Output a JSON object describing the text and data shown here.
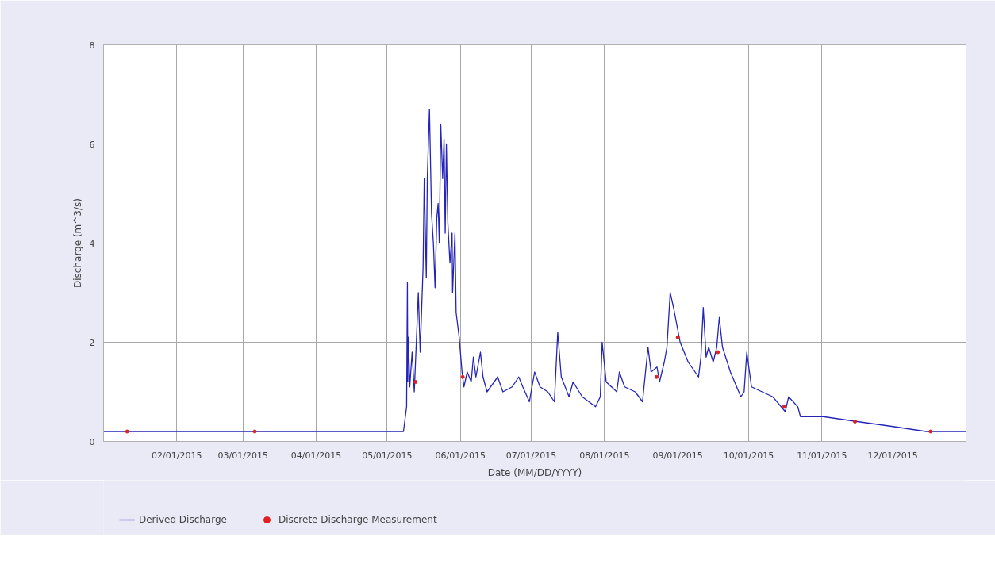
{
  "chart_data": {
    "type": "line",
    "xlabel": "Date (MM/DD/YYYY)",
    "ylabel": "Discharge (m^3/s)",
    "xlim": [
      "2015-01-01",
      "2016-01-01"
    ],
    "xticks": [
      {
        "value": "2015-01-01",
        "label": null
      },
      {
        "value": "2015-02-01",
        "label": "02/01/2015"
      },
      {
        "value": "2015-03-01",
        "label": "03/01/2015"
      },
      {
        "value": "2015-04-01",
        "label": "04/01/2015"
      },
      {
        "value": "2015-05-01",
        "label": "05/01/2015"
      },
      {
        "value": "2015-06-01",
        "label": "06/01/2015"
      },
      {
        "value": "2015-07-01",
        "label": "07/01/2015"
      },
      {
        "value": "2015-08-01",
        "label": "08/01/2015"
      },
      {
        "value": "2015-09-01",
        "label": "09/01/2015"
      },
      {
        "value": "2015-10-01",
        "label": "10/01/2015"
      },
      {
        "value": "2015-11-01",
        "label": "11/01/2015"
      },
      {
        "value": "2015-12-01",
        "label": "12/01/2015"
      },
      {
        "value": "2016-01-01",
        "label": null
      }
    ],
    "ylim": [
      0,
      8
    ],
    "yticks": [
      0,
      2,
      4,
      6,
      8
    ],
    "grid": true,
    "legend": "bottom left",
    "series": [
      {
        "name": "Derived Discharge",
        "color": "#2424b8",
        "x": [
          "2015-01-01T00:00",
          "2015-05-07T22:00",
          "2015-05-09T06:00",
          "2015-05-09T14:00",
          "2015-05-09T18:00",
          "2015-05-10T00:00",
          "2015-05-10T14:00",
          "2015-05-11T14:00",
          "2015-05-12T12:00",
          "2015-05-14T05:00",
          "2015-05-15T00:00",
          "2015-05-16T05:00",
          "2015-05-16T17:00",
          "2015-05-17T14:00",
          "2015-05-18T00:00",
          "2015-05-18T22:00",
          "2015-05-19T19:00",
          "2015-05-20T14:00",
          "2015-05-21T07:00",
          "2015-05-22T00:00",
          "2015-05-22T14:00",
          "2015-05-23T02:00",
          "2015-05-23T17:00",
          "2015-05-24T12:00",
          "2015-05-25T02:00",
          "2015-05-25T14:00",
          "2015-05-26T02:00",
          "2015-05-26T17:00",
          "2015-05-27T14:00",
          "2015-05-28T12:00",
          "2015-05-28T17:00",
          "2015-05-29T17:00",
          "2015-05-30T05:00",
          "2015-05-31T12:00",
          "2015-06-01T17:00",
          "2015-06-02T12:00",
          "2015-06-03T22:00",
          "2015-06-05T14:00",
          "2015-06-06T12:00",
          "2015-06-07T14:00",
          "2015-06-09T12:00",
          "2015-06-10T14:00",
          "2015-06-12T07:00",
          "2015-06-16T19:00",
          "2015-06-19T00:00",
          "2015-06-22T22:00",
          "2015-06-25T17:00",
          "2015-06-27T10:00",
          "2015-06-30T05:00",
          "2015-07-02T10:00",
          "2015-07-04T17:00",
          "2015-07-08T00:00",
          "2015-07-10T19:00",
          "2015-07-12T05:00",
          "2015-07-13T17:00",
          "2015-07-17T00:00",
          "2015-07-18T17:00",
          "2015-07-22T14:00",
          "2015-07-28T05:00",
          "2015-07-30T05:00",
          "2015-07-31T00:00",
          "2015-08-01T17:00",
          "2015-08-06T05:00",
          "2015-08-07T07:00",
          "2015-08-09T12:00",
          "2015-08-14T00:00",
          "2015-08-17T02:00",
          "2015-08-19T10:00",
          "2015-08-20T17:00",
          "2015-08-23T05:00",
          "2015-08-24T07:00",
          "2015-08-26T07:00",
          "2015-08-27T10:00",
          "2015-08-28T19:00",
          "2015-08-30T05:00",
          "2015-09-02T00:00",
          "2015-09-05T10:00",
          "2015-09-09T19:00",
          "2015-09-10T19:00",
          "2015-09-11T19:00",
          "2015-09-13T00:00",
          "2015-09-14T02:00",
          "2015-09-16T00:00",
          "2015-09-17T12:00",
          "2015-09-18T14:00",
          "2015-09-19T22:00",
          "2015-09-23T07:00",
          "2015-09-27T17:00",
          "2015-09-29T02:00",
          "2015-09-30T05:00",
          "2015-10-02T05:00",
          "2015-10-06T17:00",
          "2015-10-11T05:00",
          "2015-10-16T12:00",
          "2015-10-17T22:00",
          "2015-10-21T19:00",
          "2015-10-22T22:00",
          "2015-11-01T12:00",
          "2015-11-16T00:00",
          "2015-12-01T02:00",
          "2015-12-15T02:00",
          "2016-01-01T00:00"
        ],
        "values": [
          0.2,
          0.2,
          0.7,
          3.2,
          1.2,
          2.1,
          1.1,
          1.8,
          1.0,
          3.0,
          1.8,
          3.5,
          5.3,
          3.3,
          5.3,
          6.7,
          4.6,
          4.0,
          3.1,
          4.5,
          4.8,
          4.0,
          6.4,
          5.3,
          6.1,
          4.2,
          6.0,
          4.4,
          3.6,
          4.2,
          3.0,
          4.2,
          2.6,
          2.1,
          1.4,
          1.1,
          1.4,
          1.2,
          1.7,
          1.3,
          1.8,
          1.3,
          1.0,
          1.3,
          1.0,
          1.1,
          1.3,
          1.1,
          0.8,
          1.4,
          1.1,
          1.0,
          0.8,
          2.2,
          1.3,
          0.9,
          1.2,
          0.9,
          0.7,
          0.9,
          2.0,
          1.2,
          1.0,
          1.4,
          1.1,
          1.0,
          0.8,
          1.9,
          1.4,
          1.5,
          1.2,
          1.6,
          1.9,
          3.0,
          2.7,
          2.0,
          1.6,
          1.3,
          1.7,
          2.7,
          1.7,
          1.9,
          1.6,
          1.9,
          2.5,
          1.9,
          1.4,
          0.9,
          1.0,
          1.8,
          1.1,
          1.0,
          0.9,
          0.6,
          0.9,
          0.7,
          0.5,
          0.5,
          0.4,
          0.3,
          0.2,
          0.2
        ]
      },
      {
        "name": "Discrete Discharge Measurement",
        "type": "scatter",
        "marker": "circle",
        "color": "#e02020",
        "x": [
          "2015-01-11",
          "2015-03-06",
          "2015-05-13",
          "2015-06-02",
          "2015-08-23",
          "2015-09-01",
          "2015-09-18",
          "2015-10-16",
          "2015-11-15",
          "2015-12-17"
        ],
        "values": [
          0.2,
          0.2,
          1.2,
          1.3,
          1.3,
          2.1,
          1.8,
          0.7,
          0.4,
          0.2
        ]
      }
    ]
  }
}
